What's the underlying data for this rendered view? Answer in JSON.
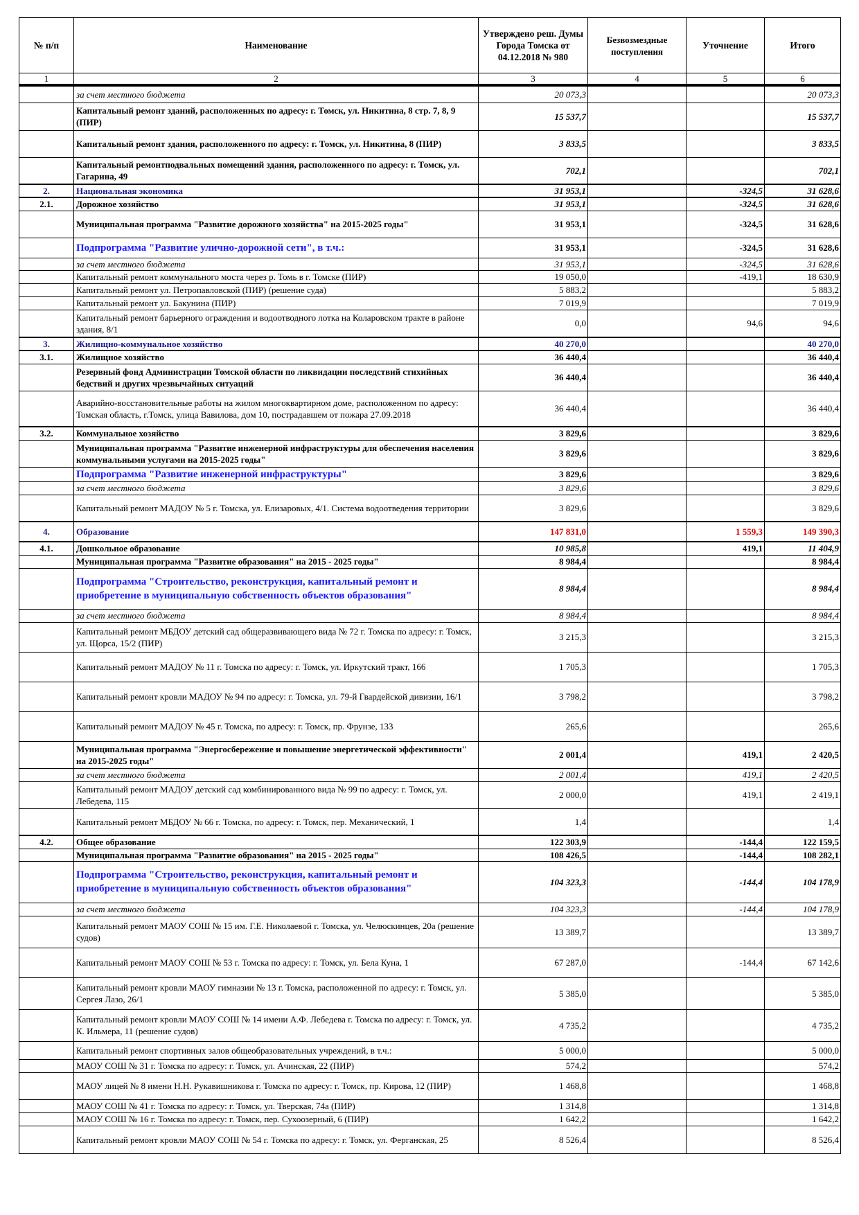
{
  "header": {
    "col1": "№ п/п",
    "col2": "Наименование",
    "col3": "Утверждено реш. Думы Города Томска от 04.12.2018 № 980",
    "col4": "Безвозмездные поступления",
    "col5": "Уточнение",
    "col6": "Итого",
    "numbers": [
      "1",
      "2",
      "3",
      "4",
      "5",
      "6"
    ]
  },
  "colors": {
    "section": "#1a1a8c",
    "subprogram": "#1a1aff",
    "highlight": "#e00000"
  },
  "rows": [
    {
      "num": "",
      "name": "за счет местного бюджета",
      "c3": "20 073,3",
      "c4": "",
      "c5": "",
      "c6": "20 073,3"
    },
    {
      "num": "",
      "name": "Капитальный ремонт зданий, расположенных  по адресу: г. Томск, ул. Никитина, 8 стр. 7, 8, 9 (ПИР)",
      "c3": "15 537,7",
      "c4": "",
      "c5": "",
      "c6": "15 537,7"
    },
    {
      "num": "",
      "name": "Капитальный ремонт здания, расположенного  по адресу: г. Томск, ул. Никитина, 8  (ПИР)",
      "c3": "3 833,5",
      "c4": "",
      "c5": "",
      "c6": "3 833,5"
    },
    {
      "num": "",
      "name": "Капитальный ремонтподвальных помещений здания, расположенного по адресу: г. Томск, ул. Гагарина, 49",
      "c3": "702,1",
      "c4": "",
      "c5": "",
      "c6": "702,1"
    },
    {
      "num": "2.",
      "name": "Национальная экономика",
      "c3": "31 953,1",
      "c4": "",
      "c5": "-324,5",
      "c6": "31 628,6"
    },
    {
      "num": "2.1.",
      "name": "Дорожное хозяйство",
      "c3": "31 953,1",
      "c4": "",
      "c5": "-324,5",
      "c6": "31 628,6"
    },
    {
      "num": "",
      "name": "Муниципальная программа \"Развитие дорожного хозяйства\" на 2015-2025 годы\"",
      "c3": "31 953,1",
      "c4": "",
      "c5": "-324,5",
      "c6": "31 628,6"
    },
    {
      "num": "",
      "name": "Подпрограмма \"Развитие улично-дорожной сети\", в т.ч.:",
      "c3": "31 953,1",
      "c4": "",
      "c5": "-324,5",
      "c6": "31 628,6"
    },
    {
      "num": "",
      "name": "за счет местного бюджета",
      "c3": "31 953,1",
      "c4": "",
      "c5": "-324,5",
      "c6": "31 628,6"
    },
    {
      "num": "",
      "name": "Капитальный ремонт коммунального моста через р. Томь в г. Томске (ПИР)",
      "c3": "19 050,0",
      "c4": "",
      "c5": "-419,1",
      "c6": "18 630,9"
    },
    {
      "num": "",
      "name": "Капитальный ремонт ул. Петропавловской (ПИР) (решение суда)",
      "c3": "5 883,2",
      "c4": "",
      "c5": "",
      "c6": "5 883,2"
    },
    {
      "num": "",
      "name": "Капитальный ремонт ул. Бакунина (ПИР)",
      "c3": "7 019,9",
      "c4": "",
      "c5": "",
      "c6": "7 019,9"
    },
    {
      "num": "",
      "name": "Капитальный ремонт барьерного ограждения и водоотводного лотка на Коларовском тракте в районе здания, 8/1",
      "c3": "0,0",
      "c4": "",
      "c5": "94,6",
      "c6": "94,6"
    },
    {
      "num": "3.",
      "name": "Жилищно-коммунальное хозяйство",
      "c3": "40 270,0",
      "c4": "",
      "c5": "",
      "c6": "40 270,0"
    },
    {
      "num": "3.1.",
      "name": "Жилищное хозяйство",
      "c3": "36 440,4",
      "c4": "",
      "c5": "",
      "c6": "36 440,4"
    },
    {
      "num": "",
      "name": "Резервный фонд Администрации Томской области по ликвидации последствий стихийных бедствий и других чрезвычайных ситуаций",
      "c3": "36 440,4",
      "c4": "",
      "c5": "",
      "c6": "36 440,4"
    },
    {
      "num": "",
      "name": "Аварийно-восстановительные работы на жилом многоквартирном доме, расположенном по адресу: Томская область, г.Томск, улица Вавилова, дом 10, пострадавшем от пожара 27.09.2018",
      "c3": "36 440,4",
      "c4": "",
      "c5": "",
      "c6": "36 440,4"
    },
    {
      "num": "3.2.",
      "name": "Коммунальное хозяйство",
      "c3": "3 829,6",
      "c4": "",
      "c5": "",
      "c6": "3 829,6"
    },
    {
      "num": "",
      "name": "Муниципальная программа \"Развитие инженерной инфраструктуры для обеспечения населения коммунальными услугами на 2015-2025 годы\"",
      "c3": "3 829,6",
      "c4": "",
      "c5": "",
      "c6": "3 829,6"
    },
    {
      "num": "",
      "name": "Подпрограмма \"Развитие инженерной инфраструктуры\"",
      "c3": "3 829,6",
      "c4": "",
      "c5": "",
      "c6": "3 829,6"
    },
    {
      "num": "",
      "name": "за счет местного бюджета",
      "c3": "3 829,6",
      "c4": "",
      "c5": "",
      "c6": "3 829,6"
    },
    {
      "num": "",
      "name": "Капитальный ремонт МАДОУ № 5 г. Томска, ул. Елизаровых, 4/1. Система водоотведения территории",
      "c3": "3 829,6",
      "c4": "",
      "c5": "",
      "c6": "3 829,6"
    },
    {
      "num": "4.",
      "name": "Образование",
      "c3": "147 831,0",
      "c4": "",
      "c5": "1 559,3",
      "c6": "149 390,3"
    },
    {
      "num": "4.1.",
      "name": "Дошкольное образование",
      "c3": "10 985,8",
      "c4": "",
      "c5": "419,1",
      "c6": "11 404,9"
    },
    {
      "num": "",
      "name": "Муниципальная программа \"Развитие образования\" на 2015 - 2025 годы\"",
      "c3": "8 984,4",
      "c4": "",
      "c5": "",
      "c6": "8 984,4"
    },
    {
      "num": "",
      "name": "Подпрограмма \"Строительство, реконструкция, капитальный ремонт и приобретение в муниципальную собственность объектов образования\"",
      "c3": "8 984,4",
      "c4": "",
      "c5": "",
      "c6": "8 984,4"
    },
    {
      "num": "",
      "name": "за счет местного бюджета",
      "c3": "8 984,4",
      "c4": "",
      "c5": "",
      "c6": "8 984,4"
    },
    {
      "num": "",
      "name": "Капитальный ремонт МБДОУ детский сад общеразвивающего вида № 72 г. Томска по адресу: г. Томск, ул. Щорса, 15/2 (ПИР)",
      "c3": "3 215,3",
      "c4": "",
      "c5": "",
      "c6": "3 215,3"
    },
    {
      "num": "",
      "name": "Капитальный ремонт МАДОУ № 11 г. Томска по адресу: г. Томск, ул. Иркутский тракт, 166",
      "c3": "1 705,3",
      "c4": "",
      "c5": "",
      "c6": "1 705,3"
    },
    {
      "num": "",
      "name": "Капитальный ремонт кровли МАДОУ № 94 по адресу: г. Томска, ул. 79-й Гвардейской дивизии, 16/1",
      "c3": "3 798,2",
      "c4": "",
      "c5": "",
      "c6": "3 798,2"
    },
    {
      "num": "",
      "name": "Капитальный ремонт МАДОУ № 45 г. Томска, по адресу: г. Томск, пр. Фрунзе, 133",
      "c3": "265,6",
      "c4": "",
      "c5": "",
      "c6": "265,6"
    },
    {
      "num": "",
      "name": "Муниципальная программа \"Энергосбережение и повышение энергетической эффективности\" на 2015-2025 годы\"",
      "c3": "2 001,4",
      "c4": "",
      "c5": "419,1",
      "c6": "2 420,5"
    },
    {
      "num": "",
      "name": "за счет местного бюджета",
      "c3": "2 001,4",
      "c4": "",
      "c5": "419,1",
      "c6": "2 420,5"
    },
    {
      "num": "",
      "name": "Капитальный ремонт МАДОУ детский сад комбинированного вида № 99 по адресу: г. Томск, ул. Лебедева, 115",
      "c3": "2 000,0",
      "c4": "",
      "c5": "419,1",
      "c6": "2 419,1"
    },
    {
      "num": "",
      "name": "Капитальный ремонт МБДОУ № 66 г. Томска, по адресу: г. Томск, пер. Механический, 1",
      "c3": "1,4",
      "c4": "",
      "c5": "",
      "c6": "1,4"
    },
    {
      "num": "4.2.",
      "name": "Общее образование",
      "c3": "122 303,9",
      "c4": "",
      "c5": "-144,4",
      "c6": "122 159,5"
    },
    {
      "num": "",
      "name": "Муниципальная программа \"Развитие образования\" на 2015 - 2025 годы\"",
      "c3": "108 426,5",
      "c4": "",
      "c5": "-144,4",
      "c6": "108 282,1"
    },
    {
      "num": "",
      "name": "Подпрограмма \"Строительство, реконструкция, капитальный ремонт и приобретение в муниципальную собственность объектов образования\"",
      "c3": "104 323,3",
      "c4": "",
      "c5": "-144,4",
      "c6": "104 178,9"
    },
    {
      "num": "",
      "name": "за счет местного бюджета",
      "c3": "104 323,3",
      "c4": "",
      "c5": "-144,4",
      "c6": "104 178,9"
    },
    {
      "num": "",
      "name": "Капитальный ремонт МАОУ СОШ № 15 им. Г.Е. Николаевой г. Томска, ул. Челюскинцев, 20а (решение судов)",
      "c3": "13 389,7",
      "c4": "",
      "c5": "",
      "c6": "13 389,7"
    },
    {
      "num": "",
      "name": "Капитальный ремонт МАОУ СОШ № 53 г. Томска по адресу: г. Томск, ул. Бела Куна, 1",
      "c3": "67 287,0",
      "c4": "",
      "c5": "-144,4",
      "c6": "67 142,6"
    },
    {
      "num": "",
      "name": "Капитальный ремонт кровли МАОУ гимназии № 13 г. Томска, расположенной по адресу: г. Томск, ул. Сергея Лазо, 26/1",
      "c3": "5 385,0",
      "c4": "",
      "c5": "",
      "c6": "5 385,0"
    },
    {
      "num": "",
      "name": "Капитальный ремонт кровли МАОУ СОШ № 14 имени А.Ф. Лебедева г. Томска по адресу: г. Томск, ул. К. Ильмера, 11 (решение судов)",
      "c3": "4 735,2",
      "c4": "",
      "c5": "",
      "c6": "4 735,2"
    },
    {
      "num": "",
      "name": "Капитальный ремонт спортивных залов общеобразовательных учреждений, в т.ч.:",
      "c3": "5 000,0",
      "c4": "",
      "c5": "",
      "c6": "5 000,0"
    },
    {
      "num": "",
      "name": "МАОУ СОШ № 31 г. Томска по адресу: г. Томск, ул. Ачинская, 22 (ПИР)",
      "c3": "574,2",
      "c4": "",
      "c5": "",
      "c6": "574,2"
    },
    {
      "num": "",
      "name": "МАОУ лицей № 8 имени Н.Н. Рукавишникова г. Томска по адресу: г. Томск, пр. Кирова, 12 (ПИР)",
      "c3": "1 468,8",
      "c4": "",
      "c5": "",
      "c6": "1 468,8"
    },
    {
      "num": "",
      "name": "МАОУ СОШ № 41 г. Томска по адресу: г. Томск, ул. Тверская, 74а (ПИР)",
      "c3": "1 314,8",
      "c4": "",
      "c5": "",
      "c6": "1 314,8"
    },
    {
      "num": "",
      "name": "МАОУ СОШ № 16 г. Томска по адресу: г. Томск, пер. Сухоозерный, 6 (ПИР)",
      "c3": "1 642,2",
      "c4": "",
      "c5": "",
      "c6": "1 642,2"
    },
    {
      "num": "",
      "name": "Капитальный ремонт кровли МАОУ СОШ № 54 г. Томска по адресу: г. Томск, ул. Ферганская, 25",
      "c3": "8 526,4",
      "c4": "",
      "c5": "",
      "c6": "8 526,4"
    }
  ]
}
